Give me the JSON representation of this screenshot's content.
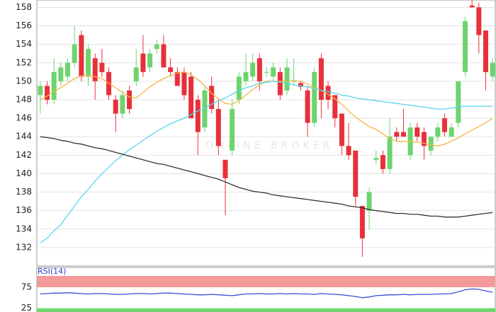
{
  "chart_data": {
    "type": "candlestick",
    "watermark": "ONLINE BROKER",
    "ylim": [
      130,
      158.8
    ],
    "yticks": [
      132,
      134,
      136,
      138,
      140,
      142,
      144,
      146,
      148,
      150,
      152,
      154,
      156,
      158
    ],
    "grid": true,
    "up_color": "#6dd46d",
    "down_color": "#e8303a",
    "open": [
      148.5,
      149.5,
      148,
      150,
      150.5,
      152,
      155,
      150.5,
      152.5,
      152,
      151,
      148,
      146.5,
      149,
      150,
      153,
      151.5,
      153.5,
      154,
      151.5,
      151,
      151,
      150.5,
      148,
      145,
      149.5,
      147,
      141.5,
      142.5,
      148,
      150,
      150.5,
      152.5,
      151,
      150.5,
      151,
      149,
      150,
      149.8,
      149,
      145.5,
      152.5,
      149.5,
      148.5,
      146.5,
      143,
      142.5,
      136.5,
      136,
      141.5,
      142,
      140.5,
      144.5,
      144.5,
      142,
      145,
      144.5,
      142.5,
      144,
      146,
      144,
      145.5,
      151,
      158.2,
      158,
      155.5,
      150.5
    ],
    "high": [
      150,
      150,
      152.5,
      152,
      152.5,
      156,
      155.5,
      154,
      153,
      153.5,
      151.5,
      148.5,
      149,
      149.5,
      153.5,
      155,
      153.5,
      154.5,
      155,
      152.5,
      151.5,
      151.5,
      151,
      148.5,
      149.5,
      150.5,
      148,
      141.5,
      148,
      151,
      153,
      153,
      153,
      151.5,
      152,
      151.5,
      152.5,
      152.5,
      150,
      149.5,
      151.5,
      153,
      150,
      148.5,
      146.5,
      145.5,
      142.5,
      136.5,
      138.5,
      142.5,
      142.5,
      146,
      145,
      147,
      145.5,
      145.5,
      145,
      144,
      145.5,
      146.5,
      145.5,
      150,
      157,
      159,
      158.5,
      155.5,
      152.5
    ],
    "low": [
      146.5,
      147.5,
      147.5,
      149.5,
      150,
      151.5,
      150,
      149.5,
      148,
      150.5,
      148,
      144.5,
      146,
      146.5,
      149.5,
      150.5,
      151,
      153,
      151.5,
      150.5,
      149.5,
      148,
      146,
      142,
      144.5,
      146.5,
      142,
      135.5,
      142,
      147.5,
      149.5,
      150,
      149,
      150.5,
      150,
      148,
      148.5,
      149.5,
      149,
      144,
      145,
      146,
      147,
      145,
      142,
      141.5,
      136.5,
      131,
      134,
      141,
      140,
      140,
      143.5,
      144,
      141.5,
      143.5,
      141.5,
      142,
      143.5,
      144,
      144,
      145,
      150.5,
      158,
      153,
      149,
      150
    ],
    "close": [
      149.5,
      148,
      151,
      151.5,
      152,
      154,
      150.5,
      153.5,
      150,
      151,
      148.5,
      146.5,
      148.5,
      147,
      151.5,
      151,
      153,
      154,
      151.5,
      151,
      149.5,
      148.5,
      146,
      144.5,
      149,
      147,
      143,
      139.5,
      147,
      150.5,
      151,
      152,
      150,
      151,
      151.5,
      148.5,
      151.5,
      150.1,
      149.4,
      145.5,
      151,
      148,
      148,
      146,
      143,
      142,
      137.5,
      133,
      138,
      141.7,
      140.5,
      144,
      144,
      144,
      145,
      144,
      143,
      144,
      145,
      144.5,
      145,
      150,
      156.5,
      158,
      155,
      151,
      152
    ],
    "series": [
      {
        "color": "#f5b640",
        "values": [
          148,
          148.4,
          148.9,
          149.3,
          149.8,
          150.3,
          150.6,
          150.6,
          150.5,
          150.3,
          149.8,
          149.3,
          148.8,
          148.3,
          148.2,
          148.8,
          149.4,
          149.9,
          150.3,
          150.6,
          150.9,
          151,
          150.7,
          150.2,
          149.5,
          148.7,
          148.1,
          147.6,
          147.5,
          147.9,
          148.5,
          149.1,
          149.6,
          150,
          150,
          150,
          150,
          150,
          150,
          149.7,
          149.3,
          149,
          148.6,
          148.1,
          147.5,
          146.8,
          146.1,
          145.6,
          145.1,
          144.8,
          144.3,
          143.8,
          143.5,
          143.5,
          143.5,
          143.4,
          143.3,
          143.1,
          143,
          143.2,
          143.5,
          143.9,
          144.3,
          144.7,
          145.1,
          145.5,
          146
        ]
      },
      {
        "color": "#55d6ee",
        "values": [
          132.5,
          133,
          133.8,
          134.5,
          135.5,
          136.5,
          137.5,
          138.3,
          139.2,
          140,
          140.7,
          141.4,
          142,
          142.6,
          143.1,
          143.6,
          144.1,
          144.6,
          145,
          145.4,
          145.7,
          146,
          146.4,
          146.8,
          147.1,
          147.5,
          147.9,
          148.2,
          148.6,
          149,
          149.3,
          149.5,
          149.8,
          149.9,
          150,
          149.9,
          149.8,
          149.6,
          149.5,
          149.4,
          149.2,
          149,
          148.9,
          148.7,
          148.5,
          148.4,
          148.2,
          148.1,
          148,
          147.9,
          147.8,
          147.7,
          147.6,
          147.5,
          147.4,
          147.3,
          147.2,
          147.1,
          147,
          147,
          147.1,
          147.2,
          147.3,
          147.3,
          147.3,
          147.3,
          147.3
        ]
      },
      {
        "color": "#333333",
        "values": [
          144,
          143.9,
          143.8,
          143.6,
          143.5,
          143.3,
          143.2,
          143,
          142.8,
          142.7,
          142.5,
          142.3,
          142.1,
          141.9,
          141.7,
          141.5,
          141.3,
          141.1,
          141,
          140.8,
          140.6,
          140.4,
          140.2,
          140,
          139.8,
          139.6,
          139.4,
          139.1,
          138.8,
          138.5,
          138.3,
          138.1,
          138,
          137.9,
          137.7,
          137.6,
          137.5,
          137.4,
          137.3,
          137.2,
          137.1,
          137,
          136.9,
          136.8,
          136.7,
          136.5,
          136.4,
          136.3,
          136.1,
          136,
          135.9,
          135.8,
          135.7,
          135.7,
          135.6,
          135.6,
          135.5,
          135.4,
          135.4,
          135.3,
          135.3,
          135.3,
          135.4,
          135.5,
          135.6,
          135.7,
          135.8
        ]
      }
    ],
    "rsi": {
      "label": "RSI(14)",
      "color": "#3a4fd8",
      "ylim": [
        16,
        102
      ],
      "yticks": [
        25,
        75
      ],
      "high_band_color": "#f59a9a",
      "low_band_color": "#6fd66f",
      "values": [
        59,
        60,
        61,
        61,
        62,
        61,
        60,
        59,
        60,
        60,
        59,
        58,
        58,
        59,
        60,
        60,
        59,
        60,
        61,
        61,
        60,
        59,
        58,
        57,
        57,
        58,
        57,
        56,
        55,
        57,
        59,
        59,
        60,
        59,
        59,
        60,
        59,
        60,
        59,
        59,
        58,
        60,
        59,
        58,
        57,
        55,
        53,
        50,
        52,
        55,
        56,
        57,
        57,
        58,
        57,
        58,
        58,
        58,
        59,
        59,
        60,
        64,
        69,
        71,
        70,
        66,
        63
      ]
    }
  }
}
